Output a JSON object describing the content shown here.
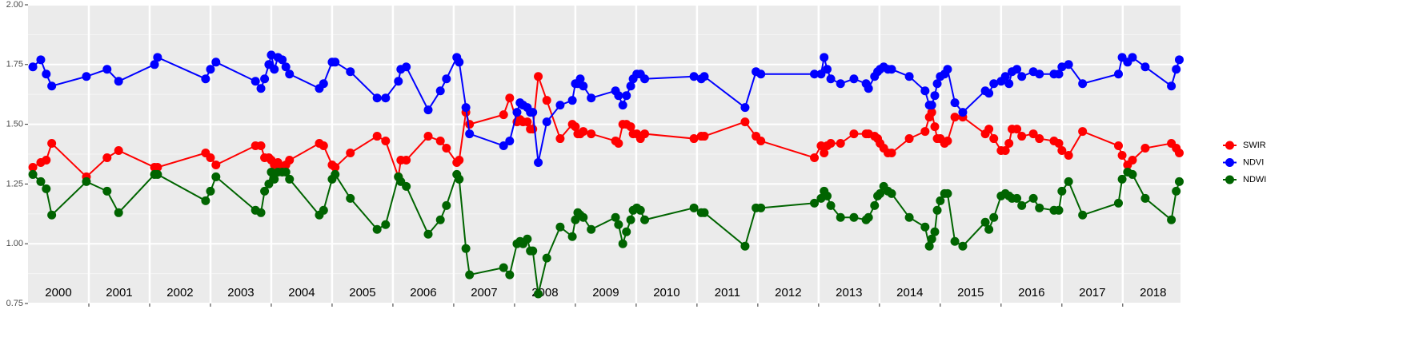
{
  "chart_data": {
    "type": "line",
    "x": [
      2000.08,
      2000.21,
      2000.3,
      2000.39,
      2000.96,
      2001.3,
      2001.49,
      2002.08,
      2002.13,
      2002.92,
      2003.0,
      2003.09,
      2003.74,
      2003.83,
      2003.89,
      2003.96,
      2004.0,
      2004.05,
      2004.11,
      2004.18,
      2004.24,
      2004.3,
      2004.79,
      2004.86,
      2005.0,
      2005.05,
      2005.3,
      2005.74,
      2005.88,
      2006.09,
      2006.13,
      2006.22,
      2006.58,
      2006.78,
      2006.88,
      2007.05,
      2007.09,
      2007.2,
      2007.26,
      2007.82,
      2007.92,
      2008.04,
      2008.09,
      2008.14,
      2008.21,
      2008.26,
      2008.3,
      2008.39,
      2008.53,
      2008.75,
      2008.95,
      2009.0,
      2009.04,
      2009.08,
      2009.13,
      2009.26,
      2009.66,
      2009.71,
      2009.78,
      2009.84,
      2009.91,
      2009.95,
      2010.01,
      2010.07,
      2010.14,
      2010.95,
      2011.07,
      2011.12,
      2011.79,
      2011.97,
      2012.05,
      2012.93,
      2013.04,
      2013.09,
      2013.14,
      2013.2,
      2013.36,
      2013.58,
      2013.78,
      2013.82,
      2013.92,
      2013.97,
      2014.01,
      2014.07,
      2014.14,
      2014.2,
      2014.49,
      2014.75,
      2014.82,
      2014.86,
      2014.91,
      2014.95,
      2015.0,
      2015.07,
      2015.12,
      2015.24,
      2015.37,
      2015.74,
      2015.8,
      2015.88,
      2016.0,
      2016.07,
      2016.13,
      2016.18,
      2016.26,
      2016.34,
      2016.53,
      2016.63,
      2016.87,
      2016.95,
      2017.0,
      2017.11,
      2017.34,
      2017.93,
      2017.99,
      2018.08,
      2018.16,
      2018.37,
      2018.8,
      2018.88,
      2018.93
    ],
    "series": [
      {
        "name": "SWIR",
        "color": "#ff0000",
        "values": [
          1.32,
          1.34,
          1.35,
          1.42,
          1.28,
          1.36,
          1.39,
          1.32,
          1.32,
          1.38,
          1.36,
          1.33,
          1.41,
          1.41,
          1.36,
          1.36,
          1.35,
          1.33,
          1.34,
          1.32,
          1.33,
          1.35,
          1.42,
          1.41,
          1.33,
          1.32,
          1.38,
          1.45,
          1.43,
          1.28,
          1.35,
          1.35,
          1.45,
          1.43,
          1.4,
          1.34,
          1.35,
          1.55,
          1.5,
          1.54,
          1.61,
          1.51,
          1.52,
          1.51,
          1.51,
          1.48,
          1.48,
          1.7,
          1.6,
          1.44,
          1.5,
          1.49,
          1.46,
          1.46,
          1.47,
          1.46,
          1.43,
          1.42,
          1.5,
          1.5,
          1.49,
          1.46,
          1.46,
          1.44,
          1.46,
          1.44,
          1.45,
          1.45,
          1.51,
          1.45,
          1.43,
          1.36,
          1.41,
          1.38,
          1.41,
          1.42,
          1.42,
          1.46,
          1.46,
          1.46,
          1.45,
          1.44,
          1.42,
          1.4,
          1.38,
          1.38,
          1.44,
          1.47,
          1.53,
          1.55,
          1.49,
          1.44,
          1.44,
          1.42,
          1.43,
          1.53,
          1.53,
          1.46,
          1.48,
          1.44,
          1.39,
          1.39,
          1.42,
          1.48,
          1.48,
          1.45,
          1.46,
          1.44,
          1.43,
          1.42,
          1.39,
          1.37,
          1.47,
          1.41,
          1.37,
          1.33,
          1.35,
          1.4,
          1.42,
          1.4,
          1.38
        ]
      },
      {
        "name": "NDVI",
        "color": "#0000ff",
        "values": [
          1.74,
          1.77,
          1.71,
          1.66,
          1.7,
          1.73,
          1.68,
          1.75,
          1.78,
          1.69,
          1.73,
          1.76,
          1.68,
          1.65,
          1.69,
          1.75,
          1.79,
          1.73,
          1.78,
          1.77,
          1.74,
          1.71,
          1.65,
          1.67,
          1.76,
          1.76,
          1.72,
          1.61,
          1.61,
          1.68,
          1.73,
          1.74,
          1.56,
          1.64,
          1.69,
          1.78,
          1.76,
          1.57,
          1.46,
          1.41,
          1.43,
          1.55,
          1.59,
          1.58,
          1.57,
          1.55,
          1.55,
          1.34,
          1.51,
          1.58,
          1.6,
          1.67,
          1.67,
          1.69,
          1.66,
          1.61,
          1.64,
          1.62,
          1.58,
          1.62,
          1.66,
          1.69,
          1.71,
          1.71,
          1.69,
          1.7,
          1.69,
          1.7,
          1.57,
          1.72,
          1.71,
          1.71,
          1.71,
          1.78,
          1.73,
          1.69,
          1.67,
          1.69,
          1.67,
          1.65,
          1.7,
          1.72,
          1.73,
          1.74,
          1.73,
          1.73,
          1.7,
          1.64,
          1.58,
          1.58,
          1.62,
          1.67,
          1.7,
          1.71,
          1.73,
          1.59,
          1.55,
          1.64,
          1.63,
          1.67,
          1.68,
          1.7,
          1.67,
          1.72,
          1.73,
          1.7,
          1.72,
          1.71,
          1.71,
          1.71,
          1.74,
          1.75,
          1.67,
          1.71,
          1.78,
          1.76,
          1.78,
          1.74,
          1.66,
          1.73,
          1.77
        ]
      },
      {
        "name": "NDWI",
        "color": "#006400",
        "values": [
          1.29,
          1.26,
          1.23,
          1.12,
          1.26,
          1.22,
          1.13,
          1.29,
          1.29,
          1.18,
          1.22,
          1.28,
          1.14,
          1.13,
          1.22,
          1.25,
          1.3,
          1.27,
          1.3,
          1.3,
          1.3,
          1.27,
          1.12,
          1.14,
          1.27,
          1.29,
          1.19,
          1.06,
          1.08,
          1.28,
          1.26,
          1.24,
          1.04,
          1.1,
          1.16,
          1.29,
          1.27,
          0.98,
          0.87,
          0.9,
          0.87,
          1.0,
          1.01,
          1.0,
          1.02,
          0.97,
          0.97,
          0.79,
          0.94,
          1.07,
          1.03,
          1.1,
          1.13,
          1.12,
          1.11,
          1.06,
          1.11,
          1.08,
          1.0,
          1.05,
          1.1,
          1.14,
          1.15,
          1.14,
          1.1,
          1.15,
          1.13,
          1.13,
          0.99,
          1.15,
          1.15,
          1.17,
          1.19,
          1.22,
          1.2,
          1.16,
          1.11,
          1.11,
          1.1,
          1.11,
          1.16,
          1.2,
          1.21,
          1.24,
          1.22,
          1.21,
          1.11,
          1.07,
          0.99,
          1.02,
          1.05,
          1.14,
          1.18,
          1.21,
          1.21,
          1.01,
          0.99,
          1.09,
          1.06,
          1.11,
          1.2,
          1.21,
          1.2,
          1.19,
          1.19,
          1.16,
          1.19,
          1.15,
          1.14,
          1.14,
          1.22,
          1.26,
          1.12,
          1.17,
          1.27,
          1.3,
          1.29,
          1.19,
          1.1,
          1.22,
          1.26
        ]
      }
    ],
    "xlim": [
      2000,
      2018.95
    ],
    "xticks": [
      2001,
      2002,
      2003,
      2004,
      2005,
      2006,
      2007,
      2008,
      2009,
      2010,
      2011,
      2012,
      2013,
      2014,
      2015,
      2016,
      2017,
      2018
    ],
    "year_labels": [
      {
        "value": 2000.5,
        "label": "2000"
      },
      {
        "value": 2001.5,
        "label": "2001"
      },
      {
        "value": 2002.5,
        "label": "2002"
      },
      {
        "value": 2003.5,
        "label": "2003"
      },
      {
        "value": 2004.5,
        "label": "2004"
      },
      {
        "value": 2005.5,
        "label": "2005"
      },
      {
        "value": 2006.5,
        "label": "2006"
      },
      {
        "value": 2007.5,
        "label": "2007"
      },
      {
        "value": 2008.5,
        "label": "2008"
      },
      {
        "value": 2009.5,
        "label": "2009"
      },
      {
        "value": 2010.5,
        "label": "2010"
      },
      {
        "value": 2011.5,
        "label": "2011"
      },
      {
        "value": 2012.5,
        "label": "2012"
      },
      {
        "value": 2013.5,
        "label": "2013"
      },
      {
        "value": 2014.5,
        "label": "2014"
      },
      {
        "value": 2015.5,
        "label": "2015"
      },
      {
        "value": 2016.5,
        "label": "2016"
      },
      {
        "value": 2017.5,
        "label": "2017"
      },
      {
        "value": 2018.5,
        "label": "2018"
      }
    ],
    "ylim": [
      0.75,
      2.0
    ],
    "yticks": [
      {
        "value": 0.75,
        "label": "0.75"
      },
      {
        "value": 1.0,
        "label": "1.00"
      },
      {
        "value": 1.25,
        "label": "1.25"
      },
      {
        "value": 1.5,
        "label": "1.50"
      },
      {
        "value": 1.75,
        "label": "1.75"
      },
      {
        "value": 2.0,
        "label": "2.00"
      }
    ],
    "yminor": [
      0.875,
      1.125,
      1.375,
      1.625,
      1.875
    ],
    "grid": true,
    "legend": "right"
  }
}
